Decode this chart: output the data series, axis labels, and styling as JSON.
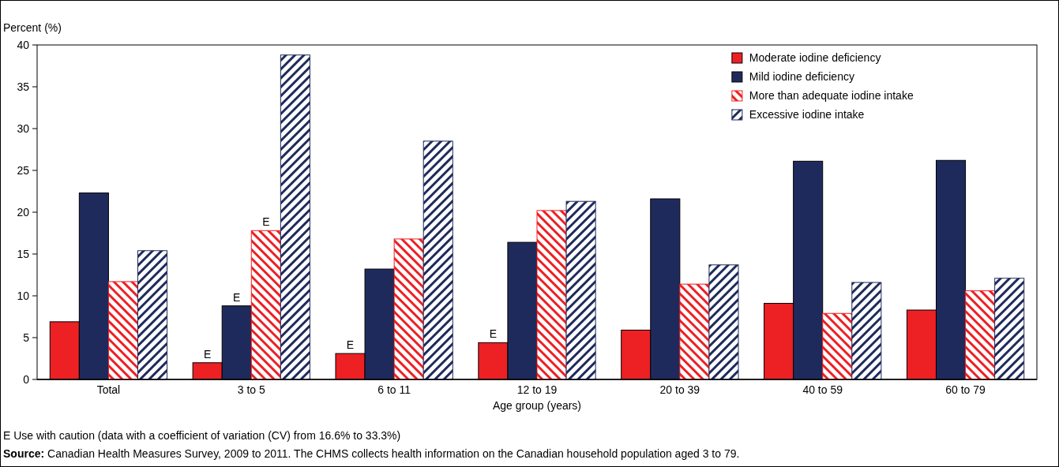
{
  "chart_data": {
    "type": "bar",
    "ylabel": "Percent (%)",
    "xlabel": "Age group (years)",
    "categories": [
      "Total",
      "3 to 5",
      "6 to 11",
      "12 to 19",
      "20 to 39",
      "40 to 59",
      "60 to 79"
    ],
    "series": [
      {
        "name": "Moderate iodine deficiency",
        "color": "#ed2024",
        "values": [
          6.9,
          2.0,
          3.1,
          4.4,
          5.9,
          9.1,
          8.3
        ],
        "value_labels": [
          null,
          "E",
          "E",
          "E",
          null,
          null,
          null
        ]
      },
      {
        "name": "Mild iodine deficiency",
        "color": "#1f2a5c",
        "values": [
          22.3,
          8.8,
          13.2,
          16.4,
          21.6,
          26.1,
          26.2
        ],
        "value_labels": [
          null,
          "E",
          null,
          null,
          null,
          null,
          null
        ]
      },
      {
        "name": "More than adequate iodine intake",
        "color": "#ed2024",
        "values": [
          11.7,
          17.8,
          16.8,
          20.2,
          11.4,
          7.9,
          10.6
        ],
        "value_labels": [
          null,
          "E",
          null,
          null,
          null,
          null,
          null
        ]
      },
      {
        "name": "Excessive iodine intake",
        "color": "#1f2a5c",
        "values": [
          15.4,
          38.8,
          28.5,
          21.3,
          13.7,
          11.6,
          12.1
        ]
      }
    ],
    "ylim": [
      0,
      40
    ],
    "yticks": [
      0,
      5,
      10,
      15,
      20,
      25,
      30,
      35,
      40
    ],
    "grid": false,
    "legend": "top right",
    "annotations": [
      "E  Use with caution (data with a coefficient of variation (CV) from 16.6% to 33.3%)",
      "Source:  Canadian Health Measures Survey, 2009 to 2011. The CHMS collects health information on the Canadian household population aged 3 to 79."
    ]
  }
}
